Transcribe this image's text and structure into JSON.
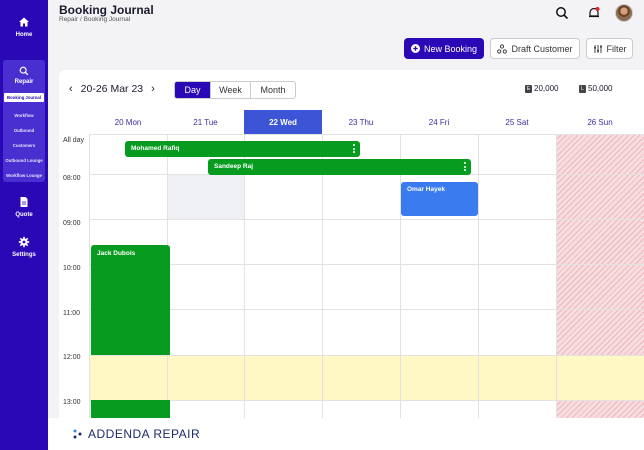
{
  "sidebar": {
    "home_label": "Home",
    "repair_label": "Repair",
    "repair_items": [
      "Booking Journal",
      "Workflow",
      "Outbound",
      "Customers",
      "Outbound Lounge",
      "Workflow Lounge"
    ],
    "quote_label": "Quote",
    "settings_label": "Settings"
  },
  "header": {
    "title": "Booking Journal",
    "breadcrumb": "Repair / Booking Journal",
    "new_booking": "New Booking",
    "draft_customer": "Draft Customer",
    "filter": "Filter"
  },
  "calendar": {
    "range": "20-26 Mar 23",
    "views": [
      "Day",
      "Week",
      "Month"
    ],
    "active_view": "Day",
    "totals": [
      {
        "currency": "E",
        "value": "20,000"
      },
      {
        "currency": "L",
        "value": "50,000"
      }
    ],
    "days": [
      "20 Mon",
      "21 Tue",
      "22 Wed",
      "23 Thu",
      "24 Fri",
      "25 Sat",
      "26 Sun"
    ],
    "today_index": 2,
    "times": [
      "All day",
      "08:00",
      "09:00",
      "10:00",
      "11:00",
      "12:00",
      "13:00"
    ],
    "events": [
      {
        "name": "Mohamed Rafiq",
        "color": "#079c1f"
      },
      {
        "name": "Sandeep Raj",
        "color": "#079c1f"
      },
      {
        "name": "Omar Hayek",
        "color": "#3a7bf0"
      },
      {
        "name": "Jack Dubois",
        "color": "#079c1f"
      }
    ]
  },
  "footer": {
    "logo_text": "ADDENDA REPAIR"
  },
  "colors": {
    "brand": "#2a08b5",
    "today": "#3b55d6",
    "lunch": "#fff8c4",
    "blocked": "#eeb7bd"
  }
}
